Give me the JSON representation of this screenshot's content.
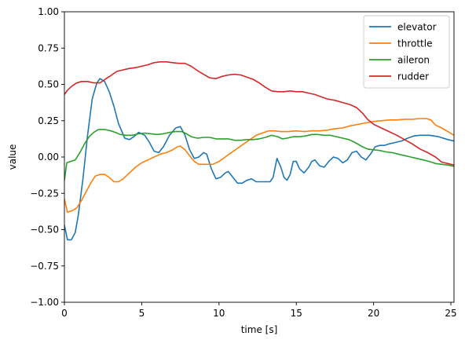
{
  "chart_data": {
    "type": "line",
    "title": "",
    "xlabel": "time [s]",
    "ylabel": "value",
    "xlim": [
      0,
      25.2
    ],
    "ylim": [
      -1.0,
      1.0
    ],
    "grid": false,
    "legend_position": "top-right",
    "xticks": [
      0,
      5,
      10,
      15,
      20,
      25
    ],
    "xtick_labels": [
      "0",
      "5",
      "10",
      "15",
      "20",
      "25"
    ],
    "yticks": [
      -1.0,
      -0.75,
      -0.5,
      -0.25,
      0.0,
      0.25,
      0.5,
      0.75,
      1.0
    ],
    "ytick_labels": [
      "−1.00",
      "−0.75",
      "−0.50",
      "−0.25",
      "0.00",
      "0.25",
      "0.50",
      "0.75",
      "1.00"
    ],
    "series": [
      {
        "name": "elevator",
        "color": "#1f77b4",
        "points": [
          [
            0,
            -0.47
          ],
          [
            0.2,
            -0.57
          ],
          [
            0.45,
            -0.57
          ],
          [
            0.7,
            -0.52
          ],
          [
            0.9,
            -0.4
          ],
          [
            1.2,
            -0.15
          ],
          [
            1.5,
            0.15
          ],
          [
            1.8,
            0.4
          ],
          [
            2.1,
            0.51
          ],
          [
            2.3,
            0.54
          ],
          [
            2.6,
            0.52
          ],
          [
            2.9,
            0.45
          ],
          [
            3.2,
            0.35
          ],
          [
            3.5,
            0.23
          ],
          [
            3.9,
            0.13
          ],
          [
            4.2,
            0.12
          ],
          [
            4.5,
            0.14
          ],
          [
            4.8,
            0.17
          ],
          [
            5.2,
            0.15
          ],
          [
            5.5,
            0.1
          ],
          [
            5.8,
            0.04
          ],
          [
            6.1,
            0.03
          ],
          [
            6.4,
            0.07
          ],
          [
            6.8,
            0.15
          ],
          [
            7.2,
            0.2
          ],
          [
            7.5,
            0.21
          ],
          [
            7.8,
            0.15
          ],
          [
            8.1,
            0.05
          ],
          [
            8.4,
            -0.01
          ],
          [
            8.7,
            0.0
          ],
          [
            9.0,
            0.03
          ],
          [
            9.2,
            0.02
          ],
          [
            9.5,
            -0.08
          ],
          [
            9.8,
            -0.15
          ],
          [
            10.1,
            -0.14
          ],
          [
            10.4,
            -0.11
          ],
          [
            10.6,
            -0.1
          ],
          [
            10.9,
            -0.14
          ],
          [
            11.2,
            -0.18
          ],
          [
            11.5,
            -0.18
          ],
          [
            11.8,
            -0.16
          ],
          [
            12.1,
            -0.15
          ],
          [
            12.4,
            -0.17
          ],
          [
            12.7,
            -0.17
          ],
          [
            13.0,
            -0.17
          ],
          [
            13.3,
            -0.17
          ],
          [
            13.5,
            -0.14
          ],
          [
            13.75,
            -0.01
          ],
          [
            14.0,
            -0.07
          ],
          [
            14.2,
            -0.14
          ],
          [
            14.4,
            -0.16
          ],
          [
            14.6,
            -0.12
          ],
          [
            14.8,
            -0.03
          ],
          [
            15.0,
            -0.03
          ],
          [
            15.2,
            -0.08
          ],
          [
            15.5,
            -0.11
          ],
          [
            15.8,
            -0.07
          ],
          [
            16.0,
            -0.03
          ],
          [
            16.2,
            -0.02
          ],
          [
            16.5,
            -0.06
          ],
          [
            16.8,
            -0.07
          ],
          [
            17.1,
            -0.03
          ],
          [
            17.4,
            0.0
          ],
          [
            17.7,
            -0.01
          ],
          [
            18.0,
            -0.04
          ],
          [
            18.3,
            -0.02
          ],
          [
            18.6,
            0.03
          ],
          [
            18.9,
            0.04
          ],
          [
            19.2,
            0.0
          ],
          [
            19.5,
            -0.02
          ],
          [
            19.8,
            0.02
          ],
          [
            20.1,
            0.07
          ],
          [
            20.4,
            0.08
          ],
          [
            20.7,
            0.08
          ],
          [
            21.0,
            0.09
          ],
          [
            21.4,
            0.1
          ],
          [
            21.8,
            0.11
          ],
          [
            22.2,
            0.13
          ],
          [
            22.6,
            0.145
          ],
          [
            23.0,
            0.15
          ],
          [
            23.6,
            0.15
          ],
          [
            24.2,
            0.14
          ],
          [
            24.8,
            0.12
          ],
          [
            25.2,
            0.11
          ]
        ]
      },
      {
        "name": "throttle",
        "color": "#ff7f0e",
        "points": [
          [
            0,
            -0.29
          ],
          [
            0.2,
            -0.38
          ],
          [
            0.5,
            -0.37
          ],
          [
            0.8,
            -0.35
          ],
          [
            1.1,
            -0.3
          ],
          [
            1.4,
            -0.24
          ],
          [
            1.7,
            -0.18
          ],
          [
            2.0,
            -0.13
          ],
          [
            2.3,
            -0.12
          ],
          [
            2.6,
            -0.12
          ],
          [
            2.9,
            -0.14
          ],
          [
            3.2,
            -0.17
          ],
          [
            3.5,
            -0.17
          ],
          [
            3.8,
            -0.15
          ],
          [
            4.2,
            -0.11
          ],
          [
            4.6,
            -0.07
          ],
          [
            5.0,
            -0.04
          ],
          [
            5.4,
            -0.02
          ],
          [
            5.8,
            0.0
          ],
          [
            6.2,
            0.02
          ],
          [
            6.6,
            0.03
          ],
          [
            7.0,
            0.05
          ],
          [
            7.3,
            0.07
          ],
          [
            7.5,
            0.075
          ],
          [
            7.8,
            0.05
          ],
          [
            8.1,
            0.01
          ],
          [
            8.4,
            -0.03
          ],
          [
            8.7,
            -0.05
          ],
          [
            9.0,
            -0.05
          ],
          [
            9.3,
            -0.05
          ],
          [
            9.6,
            -0.05
          ],
          [
            10.0,
            -0.03
          ],
          [
            10.4,
            0.0
          ],
          [
            10.8,
            0.03
          ],
          [
            11.2,
            0.06
          ],
          [
            11.6,
            0.09
          ],
          [
            12.0,
            0.12
          ],
          [
            12.4,
            0.15
          ],
          [
            12.8,
            0.165
          ],
          [
            13.2,
            0.18
          ],
          [
            13.6,
            0.18
          ],
          [
            14.0,
            0.175
          ],
          [
            14.5,
            0.175
          ],
          [
            15.0,
            0.18
          ],
          [
            15.5,
            0.175
          ],
          [
            16.0,
            0.18
          ],
          [
            16.5,
            0.18
          ],
          [
            17.0,
            0.185
          ],
          [
            17.5,
            0.195
          ],
          [
            18.0,
            0.2
          ],
          [
            18.5,
            0.215
          ],
          [
            19.0,
            0.225
          ],
          [
            19.5,
            0.235
          ],
          [
            20.0,
            0.245
          ],
          [
            20.5,
            0.25
          ],
          [
            21.0,
            0.255
          ],
          [
            21.5,
            0.255
          ],
          [
            22.0,
            0.26
          ],
          [
            22.5,
            0.26
          ],
          [
            23.0,
            0.265
          ],
          [
            23.4,
            0.265
          ],
          [
            23.7,
            0.255
          ],
          [
            24.0,
            0.22
          ],
          [
            24.4,
            0.2
          ],
          [
            24.8,
            0.175
          ],
          [
            25.2,
            0.15
          ]
        ]
      },
      {
        "name": "aileron",
        "color": "#2ca02c",
        "points": [
          [
            0,
            -0.16
          ],
          [
            0.15,
            -0.04
          ],
          [
            0.4,
            -0.03
          ],
          [
            0.7,
            -0.02
          ],
          [
            1.0,
            0.03
          ],
          [
            1.3,
            0.09
          ],
          [
            1.6,
            0.14
          ],
          [
            1.9,
            0.17
          ],
          [
            2.2,
            0.19
          ],
          [
            2.6,
            0.19
          ],
          [
            3.0,
            0.18
          ],
          [
            3.3,
            0.17
          ],
          [
            3.6,
            0.155
          ],
          [
            4.0,
            0.15
          ],
          [
            4.4,
            0.15
          ],
          [
            4.8,
            0.16
          ],
          [
            5.2,
            0.165
          ],
          [
            5.6,
            0.16
          ],
          [
            6.0,
            0.155
          ],
          [
            6.4,
            0.16
          ],
          [
            6.8,
            0.17
          ],
          [
            7.2,
            0.175
          ],
          [
            7.6,
            0.175
          ],
          [
            7.9,
            0.16
          ],
          [
            8.2,
            0.14
          ],
          [
            8.6,
            0.13
          ],
          [
            9.0,
            0.135
          ],
          [
            9.4,
            0.135
          ],
          [
            9.8,
            0.125
          ],
          [
            10.2,
            0.125
          ],
          [
            10.6,
            0.125
          ],
          [
            11.0,
            0.115
          ],
          [
            11.4,
            0.115
          ],
          [
            11.8,
            0.12
          ],
          [
            12.2,
            0.12
          ],
          [
            12.6,
            0.125
          ],
          [
            13.0,
            0.135
          ],
          [
            13.4,
            0.15
          ],
          [
            13.8,
            0.14
          ],
          [
            14.1,
            0.125
          ],
          [
            14.4,
            0.13
          ],
          [
            14.8,
            0.14
          ],
          [
            15.2,
            0.14
          ],
          [
            15.6,
            0.145
          ],
          [
            16.0,
            0.155
          ],
          [
            16.4,
            0.155
          ],
          [
            16.8,
            0.15
          ],
          [
            17.2,
            0.15
          ],
          [
            17.6,
            0.14
          ],
          [
            18.0,
            0.13
          ],
          [
            18.4,
            0.12
          ],
          [
            18.8,
            0.1
          ],
          [
            19.2,
            0.075
          ],
          [
            19.6,
            0.055
          ],
          [
            20.0,
            0.05
          ],
          [
            20.4,
            0.045
          ],
          [
            20.8,
            0.035
          ],
          [
            21.2,
            0.03
          ],
          [
            21.6,
            0.02
          ],
          [
            22.0,
            0.01
          ],
          [
            22.4,
            0.0
          ],
          [
            22.8,
            -0.01
          ],
          [
            23.2,
            -0.02
          ],
          [
            23.6,
            -0.03
          ],
          [
            24.0,
            -0.045
          ],
          [
            24.4,
            -0.05
          ],
          [
            24.8,
            -0.055
          ],
          [
            25.2,
            -0.065
          ]
        ]
      },
      {
        "name": "rudder",
        "color": "#d62728",
        "points": [
          [
            0,
            0.43
          ],
          [
            0.2,
            0.46
          ],
          [
            0.5,
            0.49
          ],
          [
            0.8,
            0.51
          ],
          [
            1.1,
            0.52
          ],
          [
            1.5,
            0.52
          ],
          [
            1.9,
            0.51
          ],
          [
            2.3,
            0.51
          ],
          [
            2.7,
            0.54
          ],
          [
            3.0,
            0.56
          ],
          [
            3.4,
            0.59
          ],
          [
            3.8,
            0.6
          ],
          [
            4.2,
            0.61
          ],
          [
            4.6,
            0.615
          ],
          [
            5.0,
            0.625
          ],
          [
            5.4,
            0.635
          ],
          [
            5.8,
            0.65
          ],
          [
            6.2,
            0.655
          ],
          [
            6.6,
            0.655
          ],
          [
            7.0,
            0.65
          ],
          [
            7.4,
            0.645
          ],
          [
            7.8,
            0.645
          ],
          [
            8.2,
            0.625
          ],
          [
            8.6,
            0.595
          ],
          [
            9.0,
            0.57
          ],
          [
            9.4,
            0.545
          ],
          [
            9.8,
            0.54
          ],
          [
            10.2,
            0.555
          ],
          [
            10.6,
            0.565
          ],
          [
            11.0,
            0.57
          ],
          [
            11.4,
            0.565
          ],
          [
            11.8,
            0.55
          ],
          [
            12.2,
            0.535
          ],
          [
            12.6,
            0.51
          ],
          [
            13.0,
            0.48
          ],
          [
            13.4,
            0.455
          ],
          [
            13.8,
            0.45
          ],
          [
            14.2,
            0.45
          ],
          [
            14.6,
            0.455
          ],
          [
            15.0,
            0.45
          ],
          [
            15.4,
            0.45
          ],
          [
            15.8,
            0.44
          ],
          [
            16.2,
            0.43
          ],
          [
            16.6,
            0.415
          ],
          [
            17.0,
            0.4
          ],
          [
            17.5,
            0.39
          ],
          [
            18.0,
            0.375
          ],
          [
            18.5,
            0.36
          ],
          [
            18.9,
            0.34
          ],
          [
            19.3,
            0.3
          ],
          [
            19.6,
            0.26
          ],
          [
            20.0,
            0.225
          ],
          [
            20.5,
            0.2
          ],
          [
            21.0,
            0.175
          ],
          [
            21.5,
            0.15
          ],
          [
            22.0,
            0.12
          ],
          [
            22.5,
            0.09
          ],
          [
            23.0,
            0.055
          ],
          [
            23.5,
            0.03
          ],
          [
            24.0,
            0.0
          ],
          [
            24.4,
            -0.035
          ],
          [
            24.8,
            -0.045
          ],
          [
            25.2,
            -0.055
          ]
        ]
      }
    ]
  }
}
